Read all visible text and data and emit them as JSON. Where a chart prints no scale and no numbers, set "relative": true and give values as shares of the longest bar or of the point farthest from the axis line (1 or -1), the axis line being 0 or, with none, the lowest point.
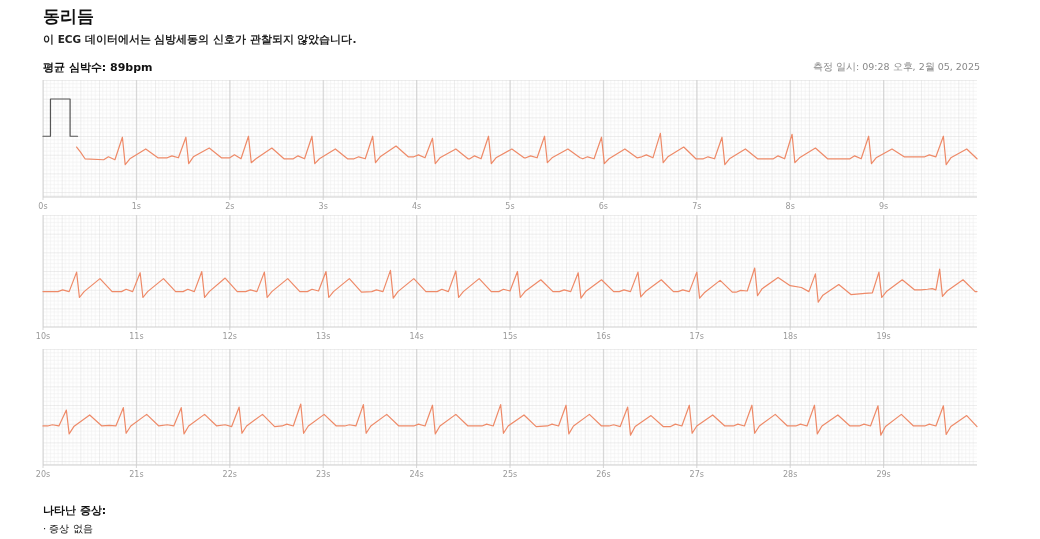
{
  "chart_data": [
    {
      "type": "line",
      "title": "동리듬",
      "subtitle": "이 ECG 데이터에서는 심방세동의 신호가 관찰되지 않았습니다.",
      "annotations": [
        "평균 심박수: 89bpm",
        "측정 일시: 09:28 오후, 2월 05, 2025"
      ],
      "relative": true,
      "grid": true,
      "xlim": [
        0,
        10
      ],
      "xticks": [
        {
          "value": 0,
          "label": "0s"
        },
        {
          "value": 1,
          "label": "1s"
        },
        {
          "value": 2,
          "label": "2s"
        },
        {
          "value": 3,
          "label": "3s"
        },
        {
          "value": 4,
          "label": "4s"
        },
        {
          "value": 5,
          "label": "5s"
        },
        {
          "value": 6,
          "label": "6s"
        },
        {
          "value": 7,
          "label": "7s"
        },
        {
          "value": 8,
          "label": "8s"
        },
        {
          "value": 9,
          "label": "9s"
        }
      ],
      "series": [
        {
          "color": "#555555",
          "x": [
            0,
            0.08,
            0.08,
            0.29,
            0.29,
            0.37
          ],
          "values": [
            0.62,
            0.62,
            1,
            1,
            0.62,
            0.62
          ]
        },
        {
          "color": "#ee8a68",
          "x": [
            0.36,
            0.4,
            0.45,
            0.65,
            0.7,
            0.77,
            0.85,
            0.88,
            0.93,
            1.1,
            1.23,
            1.33,
            1.38,
            1.45,
            1.53,
            1.56,
            1.61,
            1.78,
            1.91,
            2.0,
            2.05,
            2.12,
            2.2,
            2.23,
            2.28,
            2.45,
            2.58,
            2.68,
            2.73,
            2.8,
            2.88,
            2.91,
            2.96,
            3.13,
            3.26,
            3.33,
            3.38,
            3.45,
            3.53,
            3.56,
            3.61,
            3.78,
            3.91,
            3.97,
            4.02,
            4.09,
            4.17,
            4.2,
            4.25,
            4.42,
            4.55,
            4.57,
            4.62,
            4.69,
            4.77,
            4.8,
            4.85,
            5.02,
            5.15,
            5.17,
            5.22,
            5.29,
            5.37,
            5.4,
            5.45,
            5.62,
            5.75,
            5.78,
            5.83,
            5.9,
            5.98,
            6.01,
            6.06,
            6.23,
            6.36,
            6.41,
            6.46,
            6.53,
            6.61,
            6.64,
            6.69,
            6.86,
            6.99,
            7.07,
            7.12,
            7.19,
            7.27,
            7.3,
            7.35,
            7.52,
            7.65,
            7.82,
            7.87,
            7.94,
            8.02,
            8.05,
            8.1,
            8.27,
            8.4,
            8.64,
            8.69,
            8.76,
            8.84,
            8.87,
            8.92,
            9.09,
            9.22,
            9.44,
            9.49,
            9.56,
            9.64,
            9.67,
            9.72,
            9.89,
            10.0
          ],
          "values": [
            0.51,
            0.46,
            0.39,
            0.38,
            0.41,
            0.38,
            0.61,
            0.33,
            0.39,
            0.49,
            0.4,
            0.4,
            0.42,
            0.4,
            0.61,
            0.34,
            0.41,
            0.5,
            0.4,
            0.4,
            0.43,
            0.39,
            0.62,
            0.35,
            0.39,
            0.5,
            0.39,
            0.39,
            0.42,
            0.39,
            0.62,
            0.34,
            0.39,
            0.49,
            0.39,
            0.39,
            0.41,
            0.39,
            0.62,
            0.35,
            0.41,
            0.52,
            0.41,
            0.41,
            0.43,
            0.4,
            0.6,
            0.34,
            0.4,
            0.49,
            0.39,
            0.39,
            0.42,
            0.39,
            0.62,
            0.34,
            0.4,
            0.49,
            0.4,
            0.4,
            0.42,
            0.4,
            0.62,
            0.35,
            0.4,
            0.49,
            0.4,
            0.39,
            0.41,
            0.39,
            0.61,
            0.34,
            0.39,
            0.49,
            0.4,
            0.41,
            0.43,
            0.4,
            0.65,
            0.35,
            0.41,
            0.51,
            0.39,
            0.39,
            0.41,
            0.39,
            0.61,
            0.33,
            0.39,
            0.49,
            0.39,
            0.39,
            0.42,
            0.39,
            0.64,
            0.35,
            0.4,
            0.5,
            0.39,
            0.39,
            0.42,
            0.39,
            0.62,
            0.34,
            0.4,
            0.49,
            0.41,
            0.41,
            0.43,
            0.41,
            0.62,
            0.33,
            0.4,
            0.49,
            0.39
          ]
        }
      ]
    },
    {
      "type": "line",
      "relative": true,
      "grid": true,
      "xlim": [
        10,
        20
      ],
      "xticks": [
        {
          "value": 10,
          "label": "10s"
        },
        {
          "value": 11,
          "label": "11s"
        },
        {
          "value": 12,
          "label": "12s"
        },
        {
          "value": 13,
          "label": "13s"
        },
        {
          "value": 14,
          "label": "14s"
        },
        {
          "value": 15,
          "label": "15s"
        },
        {
          "value": 16,
          "label": "16s"
        },
        {
          "value": 17,
          "label": "17s"
        },
        {
          "value": 18,
          "label": "18s"
        },
        {
          "value": 19,
          "label": "19s"
        }
      ],
      "series": [
        {
          "color": "#ee8a68",
          "x": [
            10.0,
            10.16,
            10.21,
            10.28,
            10.36,
            10.39,
            10.44,
            10.61,
            10.74,
            10.84,
            10.89,
            10.96,
            11.04,
            11.07,
            11.12,
            11.29,
            11.42,
            11.5,
            11.55,
            11.62,
            11.7,
            11.73,
            11.78,
            11.95,
            12.08,
            12.17,
            12.22,
            12.29,
            12.37,
            12.4,
            12.45,
            12.62,
            12.75,
            12.83,
            12.88,
            12.95,
            13.03,
            13.06,
            13.11,
            13.28,
            13.41,
            13.52,
            13.57,
            13.64,
            13.72,
            13.75,
            13.8,
            13.97,
            14.1,
            14.22,
            14.27,
            14.34,
            14.42,
            14.45,
            14.5,
            14.67,
            14.8,
            14.88,
            14.93,
            15.0,
            15.08,
            15.11,
            15.16,
            15.33,
            15.46,
            15.53,
            15.58,
            15.65,
            15.73,
            15.76,
            15.81,
            15.98,
            16.11,
            16.17,
            16.22,
            16.29,
            16.37,
            16.4,
            16.45,
            16.62,
            16.75,
            16.8,
            16.85,
            16.92,
            17.0,
            17.03,
            17.08,
            17.25,
            17.38,
            17.42,
            17.47,
            17.54,
            17.62,
            17.65,
            17.7,
            17.87,
            18.0,
            18.12,
            18.2,
            18.27,
            18.3,
            18.35,
            18.52,
            18.65,
            18.8,
            18.88,
            18.95,
            18.98,
            19.03,
            19.2,
            19.33,
            19.4,
            19.47,
            19.52,
            19.56,
            19.6,
            19.63,
            19.68,
            19.85,
            19.98,
            20.0
          ],
          "values": [
            0.6,
            0.6,
            0.63,
            0.6,
            0.93,
            0.5,
            0.6,
            0.82,
            0.6,
            0.6,
            0.64,
            0.6,
            0.92,
            0.5,
            0.6,
            0.82,
            0.6,
            0.6,
            0.64,
            0.6,
            0.94,
            0.5,
            0.6,
            0.83,
            0.6,
            0.6,
            0.63,
            0.6,
            0.93,
            0.5,
            0.6,
            0.82,
            0.6,
            0.6,
            0.64,
            0.61,
            0.94,
            0.5,
            0.6,
            0.82,
            0.59,
            0.6,
            0.63,
            0.6,
            0.96,
            0.49,
            0.6,
            0.82,
            0.6,
            0.6,
            0.64,
            0.6,
            0.95,
            0.5,
            0.6,
            0.82,
            0.6,
            0.6,
            0.64,
            0.61,
            0.94,
            0.5,
            0.6,
            0.8,
            0.6,
            0.6,
            0.63,
            0.6,
            0.92,
            0.49,
            0.6,
            0.8,
            0.6,
            0.6,
            0.63,
            0.6,
            0.93,
            0.51,
            0.6,
            0.8,
            0.6,
            0.6,
            0.63,
            0.6,
            0.93,
            0.49,
            0.58,
            0.79,
            0.59,
            0.59,
            0.62,
            0.61,
            1.0,
            0.53,
            0.65,
            0.84,
            0.7,
            0.67,
            0.6,
            0.9,
            0.42,
            0.54,
            0.72,
            0.55,
            0.57,
            0.58,
            0.93,
            0.5,
            0.6,
            0.8,
            0.63,
            0.63,
            0.64,
            0.65,
            0.63,
            0.98,
            0.52,
            0.61,
            0.8,
            0.6,
            0.6
          ]
        }
      ]
    },
    {
      "type": "line",
      "relative": true,
      "grid": true,
      "xlim": [
        20,
        30
      ],
      "annotations": [
        "나타난 증상:",
        "· 증상 없음"
      ],
      "xticks": [
        {
          "value": 20,
          "label": "20s"
        },
        {
          "value": 21,
          "label": "21s"
        },
        {
          "value": 22,
          "label": "22s"
        },
        {
          "value": 23,
          "label": "23s"
        },
        {
          "value": 24,
          "label": "24s"
        },
        {
          "value": 25,
          "label": "25s"
        },
        {
          "value": 26,
          "label": "26s"
        },
        {
          "value": 27,
          "label": "27s"
        },
        {
          "value": 28,
          "label": "28s"
        },
        {
          "value": 29,
          "label": "29s"
        }
      ],
      "series": [
        {
          "color": "#ee8a68",
          "x": [
            20.0,
            20.05,
            20.1,
            20.17,
            20.25,
            20.28,
            20.33,
            20.5,
            20.63,
            20.71,
            20.78,
            20.86,
            20.89,
            20.94,
            21.11,
            21.24,
            21.33,
            21.4,
            21.48,
            21.51,
            21.56,
            21.73,
            21.86,
            21.95,
            22.02,
            22.1,
            22.13,
            22.18,
            22.35,
            22.48,
            22.56,
            22.61,
            22.68,
            22.76,
            22.79,
            22.84,
            23.01,
            23.14,
            23.23,
            23.28,
            23.35,
            23.43,
            23.46,
            23.51,
            23.68,
            23.81,
            23.97,
            24.02,
            24.09,
            24.17,
            24.2,
            24.25,
            24.42,
            24.55,
            24.7,
            24.75,
            24.82,
            24.9,
            24.93,
            24.98,
            25.15,
            25.28,
            25.4,
            25.45,
            25.52,
            25.6,
            25.63,
            25.68,
            25.85,
            25.98,
            26.06,
            26.11,
            26.18,
            26.26,
            26.29,
            26.34,
            26.51,
            26.64,
            26.72,
            26.77,
            26.84,
            26.92,
            26.95,
            27.0,
            27.17,
            27.3,
            27.39,
            27.44,
            27.51,
            27.59,
            27.62,
            27.67,
            27.84,
            27.97,
            28.06,
            28.11,
            28.18,
            28.26,
            28.29,
            28.34,
            28.51,
            28.64,
            28.74,
            28.79,
            28.86,
            28.94,
            28.97,
            29.02,
            29.19,
            29.32,
            29.44,
            29.49,
            29.56,
            29.64,
            29.67,
            29.72,
            29.89,
            30.0
          ],
          "values": [
            0.64,
            0.64,
            0.66,
            0.64,
            0.9,
            0.51,
            0.63,
            0.82,
            0.64,
            0.65,
            0.64,
            0.94,
            0.52,
            0.64,
            0.83,
            0.64,
            0.66,
            0.64,
            0.94,
            0.51,
            0.64,
            0.83,
            0.64,
            0.66,
            0.63,
            0.95,
            0.52,
            0.64,
            0.83,
            0.63,
            0.64,
            0.67,
            0.64,
            1.0,
            0.52,
            0.64,
            0.83,
            0.64,
            0.64,
            0.66,
            0.64,
            0.99,
            0.52,
            0.64,
            0.83,
            0.64,
            0.64,
            0.67,
            0.64,
            0.98,
            0.51,
            0.64,
            0.83,
            0.64,
            0.64,
            0.67,
            0.64,
            0.99,
            0.52,
            0.64,
            0.82,
            0.63,
            0.64,
            0.67,
            0.64,
            0.98,
            0.51,
            0.64,
            0.83,
            0.64,
            0.64,
            0.66,
            0.63,
            0.95,
            0.49,
            0.63,
            0.81,
            0.63,
            0.63,
            0.67,
            0.64,
            0.98,
            0.52,
            0.64,
            0.82,
            0.64,
            0.64,
            0.67,
            0.64,
            0.98,
            0.52,
            0.64,
            0.83,
            0.64,
            0.64,
            0.67,
            0.64,
            0.98,
            0.51,
            0.64,
            0.82,
            0.64,
            0.64,
            0.67,
            0.64,
            0.97,
            0.49,
            0.63,
            0.83,
            0.64,
            0.64,
            0.67,
            0.64,
            0.97,
            0.5,
            0.63,
            0.81,
            0.63
          ]
        }
      ]
    }
  ]
}
